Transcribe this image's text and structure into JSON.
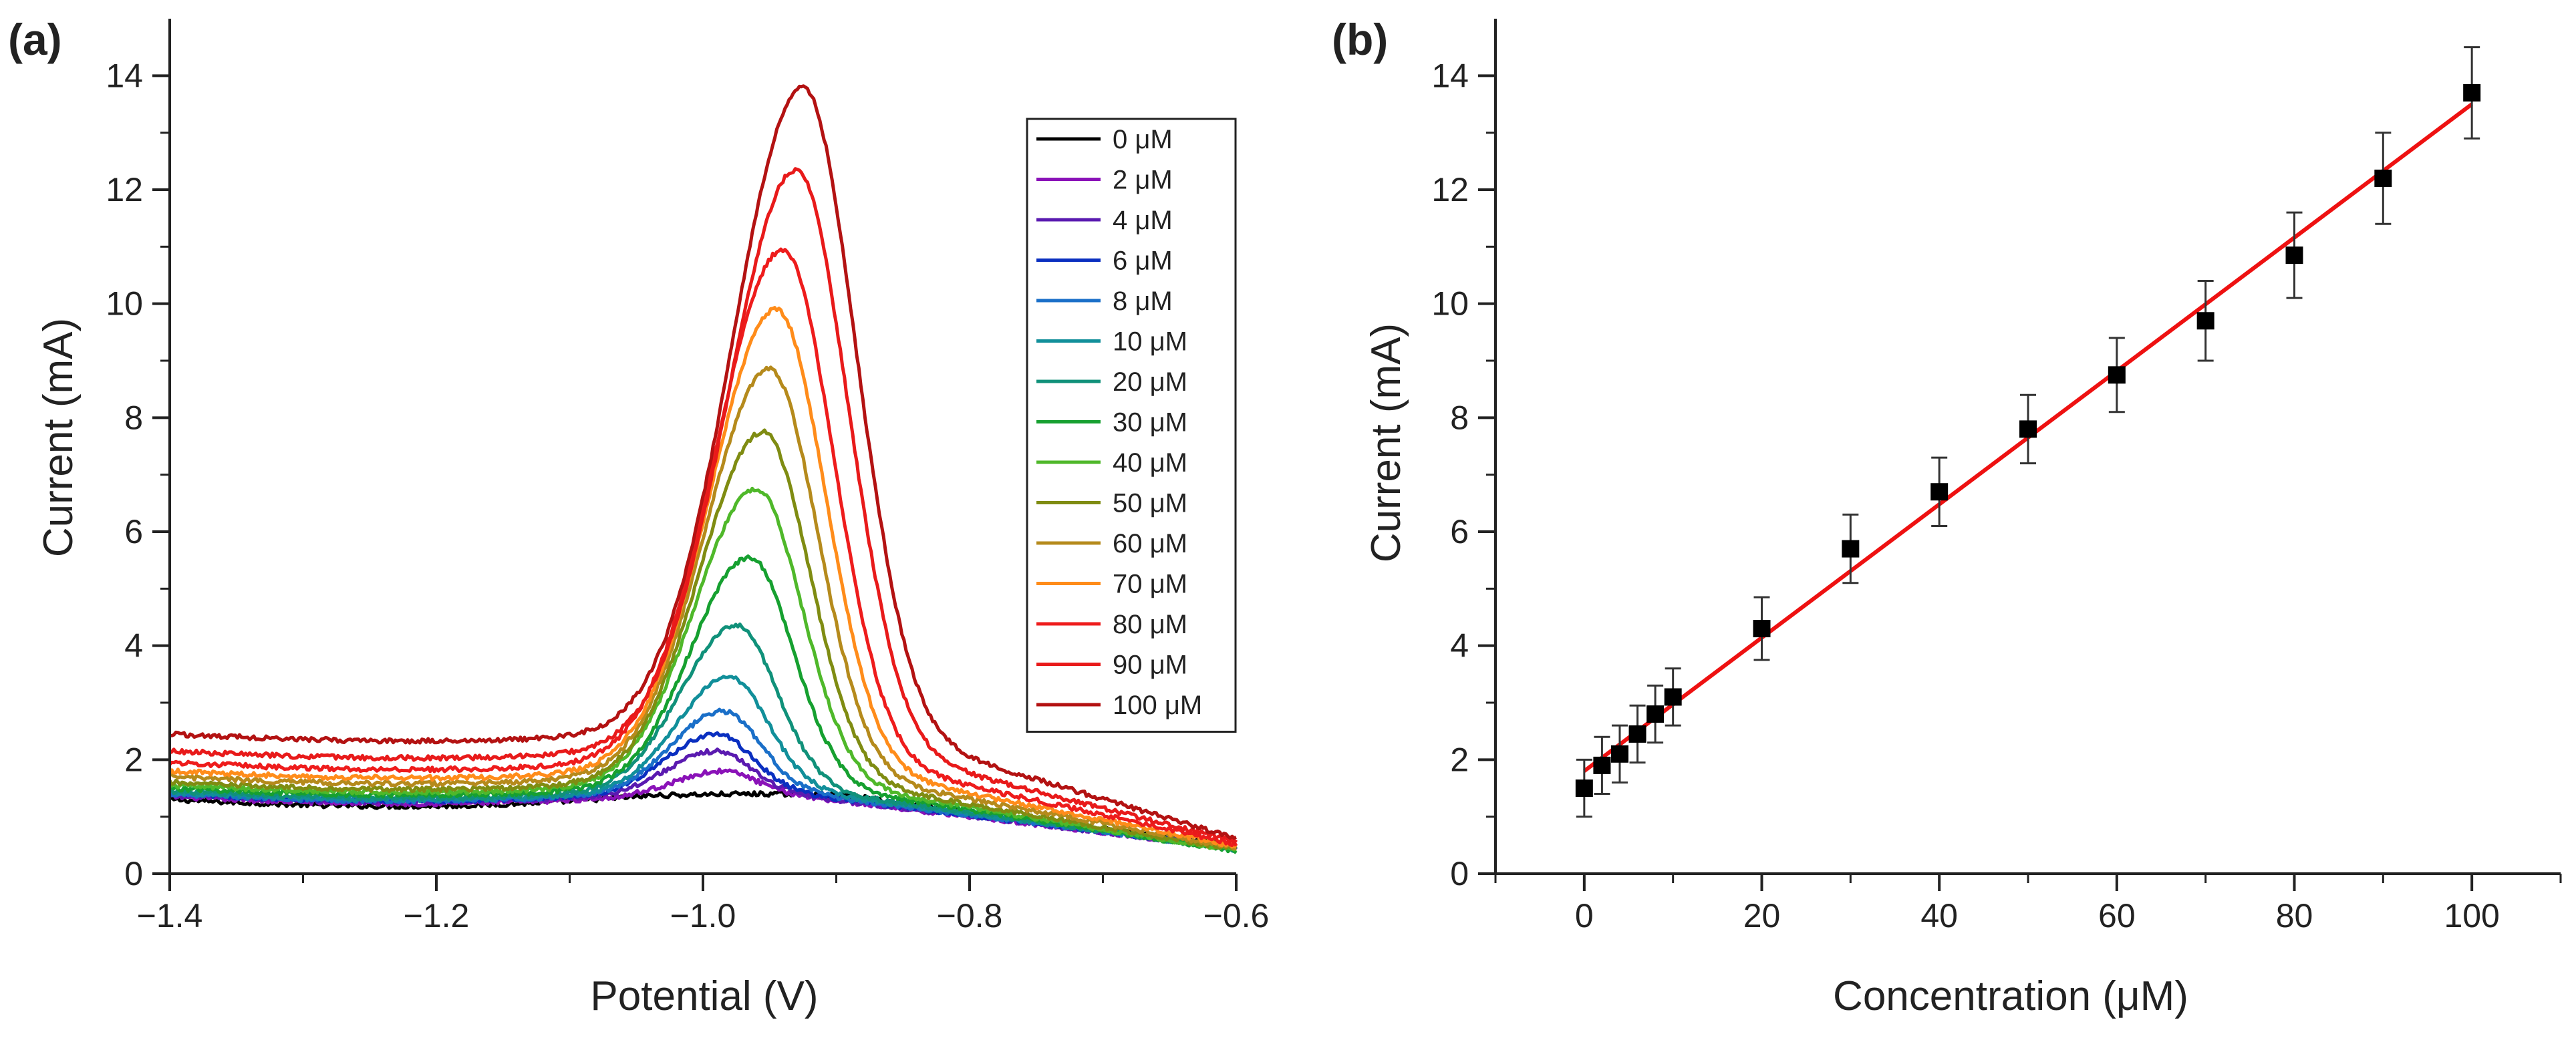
{
  "chart_data": [
    {
      "panel_label": "(a)",
      "type": "line",
      "xlabel": "Potential (V)",
      "ylabel": "Current (mA)",
      "xlim": [
        -1.4,
        -0.6
      ],
      "ylim": [
        0,
        15
      ],
      "xticks": [
        -1.4,
        -1.2,
        -1.0,
        -0.8,
        -0.6
      ],
      "xtick_labels": [
        "−1.4",
        "−1.2",
        "−1.0",
        "−0.8",
        "−0.6"
      ],
      "yticks": [
        0,
        2,
        4,
        6,
        8,
        10,
        12,
        14
      ],
      "ytick_labels": [
        "0",
        "2",
        "4",
        "6",
        "8",
        "10",
        "12",
        "14"
      ],
      "grid": false,
      "legend_position": "top-right",
      "series": [
        {
          "name": "0 μM",
          "color": "#000000",
          "peak_x": -0.95,
          "peak_y": 1.35,
          "baseline_start": 1.3,
          "baseline_end": 0.5,
          "width": 0.09
        },
        {
          "name": "2 μM",
          "color": "#8a12b8",
          "peak_x": -0.985,
          "peak_y": 1.75,
          "baseline_start": 1.35,
          "baseline_end": 0.45,
          "width": 0.03
        },
        {
          "name": "4 μM",
          "color": "#5a1ab0",
          "peak_x": -0.99,
          "peak_y": 2.1,
          "baseline_start": 1.38,
          "baseline_end": 0.45,
          "width": 0.031
        },
        {
          "name": "6 μM",
          "color": "#0a2fc0",
          "peak_x": -0.99,
          "peak_y": 2.4,
          "baseline_start": 1.4,
          "baseline_end": 0.45,
          "width": 0.032
        },
        {
          "name": "8 μM",
          "color": "#1a6fc8",
          "peak_x": -0.985,
          "peak_y": 2.8,
          "baseline_start": 1.4,
          "baseline_end": 0.45,
          "width": 0.033
        },
        {
          "name": "10 μM",
          "color": "#118f9a",
          "peak_x": -0.98,
          "peak_y": 3.4,
          "baseline_start": 1.42,
          "baseline_end": 0.45,
          "width": 0.034
        },
        {
          "name": "20 μM",
          "color": "#10917a",
          "peak_x": -0.975,
          "peak_y": 4.3,
          "baseline_start": 1.45,
          "baseline_end": 0.42,
          "width": 0.036
        },
        {
          "name": "30 μM",
          "color": "#16a030",
          "peak_x": -0.965,
          "peak_y": 5.5,
          "baseline_start": 1.5,
          "baseline_end": 0.4,
          "width": 0.038
        },
        {
          "name": "40 μM",
          "color": "#4fb82a",
          "peak_x": -0.96,
          "peak_y": 6.7,
          "baseline_start": 1.55,
          "baseline_end": 0.4,
          "width": 0.04
        },
        {
          "name": "50 μM",
          "color": "#7f8c12",
          "peak_x": -0.955,
          "peak_y": 7.7,
          "baseline_start": 1.6,
          "baseline_end": 0.42,
          "width": 0.041
        },
        {
          "name": "60 μM",
          "color": "#b58a1c",
          "peak_x": -0.95,
          "peak_y": 8.8,
          "baseline_start": 1.7,
          "baseline_end": 0.45,
          "width": 0.042
        },
        {
          "name": "70 μM",
          "color": "#ff8c1a",
          "peak_x": -0.945,
          "peak_y": 9.85,
          "baseline_start": 1.8,
          "baseline_end": 0.48,
          "width": 0.043
        },
        {
          "name": "80 μM",
          "color": "#ee1c1c",
          "peak_x": -0.94,
          "peak_y": 10.9,
          "baseline_start": 1.95,
          "baseline_end": 0.52,
          "width": 0.044
        },
        {
          "name": "90 μM",
          "color": "#e81a1a",
          "peak_x": -0.93,
          "peak_y": 12.3,
          "baseline_start": 2.15,
          "baseline_end": 0.56,
          "width": 0.045
        },
        {
          "name": "100 μM",
          "color": "#b31212",
          "peak_x": -0.925,
          "peak_y": 13.75,
          "baseline_start": 2.45,
          "baseline_end": 0.62,
          "width": 0.046
        }
      ]
    },
    {
      "panel_label": "(b)",
      "type": "scatter",
      "xlabel": "Concentration (μM)",
      "ylabel": "Current (mA)",
      "xlim": [
        -10,
        110
      ],
      "ylim": [
        0,
        15
      ],
      "xticks": [
        0,
        20,
        40,
        60,
        80,
        100
      ],
      "xtick_labels": [
        "0",
        "20",
        "40",
        "60",
        "80",
        "100"
      ],
      "yticks": [
        0,
        2,
        4,
        6,
        8,
        10,
        12,
        14
      ],
      "ytick_labels": [
        "0",
        "2",
        "4",
        "6",
        "8",
        "10",
        "12",
        "14"
      ],
      "grid": false,
      "marker_color": "#000000",
      "points": [
        {
          "x": 0,
          "y": 1.5,
          "err": 0.5
        },
        {
          "x": 2,
          "y": 1.9,
          "err": 0.5
        },
        {
          "x": 4,
          "y": 2.1,
          "err": 0.5
        },
        {
          "x": 6,
          "y": 2.45,
          "err": 0.5
        },
        {
          "x": 8,
          "y": 2.8,
          "err": 0.5
        },
        {
          "x": 10,
          "y": 3.1,
          "err": 0.5
        },
        {
          "x": 20,
          "y": 4.3,
          "err": 0.55
        },
        {
          "x": 30,
          "y": 5.7,
          "err": 0.6
        },
        {
          "x": 40,
          "y": 6.7,
          "err": 0.6
        },
        {
          "x": 50,
          "y": 7.8,
          "err": 0.6
        },
        {
          "x": 60,
          "y": 8.75,
          "err": 0.65
        },
        {
          "x": 70,
          "y": 9.7,
          "err": 0.7
        },
        {
          "x": 80,
          "y": 10.85,
          "err": 0.75
        },
        {
          "x": 90,
          "y": 12.2,
          "err": 0.8
        },
        {
          "x": 100,
          "y": 13.7,
          "err": 0.8
        }
      ],
      "fit_line": {
        "color": "#ee1111",
        "x_start": 0,
        "x_end": 100,
        "slope": 0.117,
        "intercept": 1.8
      }
    }
  ]
}
